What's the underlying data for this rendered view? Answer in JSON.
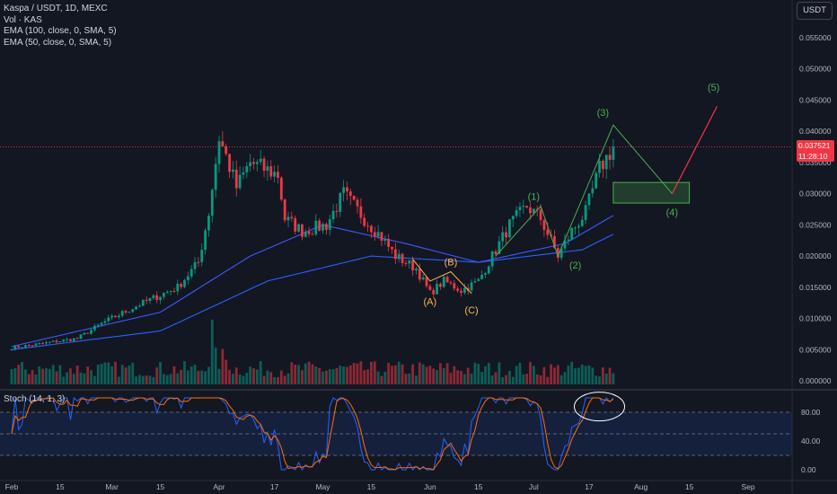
{
  "header": {
    "symbol": "Kaspa / USDT, 1D, MEXC",
    "volume": "Vol · KAS",
    "ema100": "EMA (100, close, 0, SMA, 5)",
    "ema50": "EMA (50, close, 0, SMA, 5)",
    "currency_button": "USDT"
  },
  "stoch_label": "Stoch (14, 1, 3)",
  "price_tag": {
    "price": "0.037521",
    "countdown": "11:28:10"
  },
  "colors": {
    "background": "#131722",
    "up": "#089981",
    "down": "#f23645",
    "ema100": "#2962ff",
    "ema50": "#3d5afe",
    "stoch_k": "#2962ff",
    "stoch_d": "#ff6d00",
    "wave_green": "#4caf50",
    "wave_orange": "#ffb74d",
    "projection_red": "#f23645"
  },
  "chart_data": {
    "type": "candlestick",
    "price_axis": {
      "ticks": [
        "0.055000",
        "0.050000",
        "0.045000",
        "0.040000",
        "0.035000",
        "0.030000",
        "0.025000",
        "0.020000",
        "0.015000",
        "0.010000",
        "0.005000",
        "0.000000"
      ],
      "ylim": [
        0,
        0.058
      ]
    },
    "time_axis": {
      "ticks": [
        "Feb",
        "15",
        "Mar",
        "15",
        "Apr",
        "17",
        "May",
        "15",
        "Jun",
        "15",
        "Jul",
        "17",
        "Aug",
        "15",
        "Sep"
      ]
    },
    "close_anchors": [
      [
        "Feb 1",
        0.0053
      ],
      [
        "Feb 10",
        0.006
      ],
      [
        "Feb 20",
        0.0068
      ],
      [
        "Feb 28",
        0.0095
      ],
      [
        "Mar 10",
        0.0125
      ],
      [
        "Mar 20",
        0.015
      ],
      [
        "Mar 26",
        0.019
      ],
      [
        "Mar 29",
        0.027
      ],
      [
        "Apr 1",
        0.039
      ],
      [
        "Apr 3",
        0.036
      ],
      [
        "Apr 6",
        0.031
      ],
      [
        "Apr 10",
        0.035
      ],
      [
        "Apr 14",
        0.034
      ],
      [
        "Apr 18",
        0.033
      ],
      [
        "Apr 20",
        0.026
      ],
      [
        "Apr 25",
        0.024
      ],
      [
        "May 2",
        0.025
      ],
      [
        "May 7",
        0.03
      ],
      [
        "May 13",
        0.026
      ],
      [
        "May 18",
        0.023
      ],
      [
        "May 22",
        0.02
      ],
      [
        "May 28",
        0.018
      ],
      [
        "Jun 1",
        0.014
      ],
      [
        "Jun 5",
        0.016
      ],
      [
        "Jun 10",
        0.0145
      ],
      [
        "Jun 15",
        0.016
      ],
      [
        "Jun 20",
        0.021
      ],
      [
        "Jun 24",
        0.025
      ],
      [
        "Jun 29",
        0.028
      ],
      [
        "Jul 3",
        0.026
      ],
      [
        "Jul 8",
        0.02
      ],
      [
        "Jul 12",
        0.024
      ],
      [
        "Jul 16",
        0.027
      ],
      [
        "Jul 20",
        0.034
      ],
      [
        "Jul 24",
        0.0375
      ]
    ],
    "ema100_anchors": [
      [
        "Feb 1",
        0.005
      ],
      [
        "Mar 15",
        0.008
      ],
      [
        "Apr 15",
        0.016
      ],
      [
        "May 15",
        0.02
      ],
      [
        "Jun 15",
        0.019
      ],
      [
        "Jul 15",
        0.021
      ],
      [
        "Jul 24",
        0.0235
      ]
    ],
    "ema50_anchors": [
      [
        "Feb 1",
        0.0055
      ],
      [
        "Mar 15",
        0.011
      ],
      [
        "Apr 10",
        0.02
      ],
      [
        "May 1",
        0.025
      ],
      [
        "May 25",
        0.022
      ],
      [
        "Jun 15",
        0.019
      ],
      [
        "Jul 10",
        0.022
      ],
      [
        "Jul 24",
        0.0265
      ]
    ],
    "stoch_axis": {
      "ticks": [
        "80.00",
        "40.00",
        "0.00"
      ],
      "ylim": [
        0,
        100
      ],
      "bands": [
        20,
        50,
        80
      ]
    },
    "annotations": {
      "labels": [
        {
          "text": "(A)",
          "date": "Jun 1",
          "price": 0.0122,
          "color": "orange"
        },
        {
          "text": "(B)",
          "date": "Jun 7",
          "price": 0.0185,
          "color": "orange"
        },
        {
          "text": "(C)",
          "date": "Jun 13",
          "price": 0.0108,
          "color": "orange"
        },
        {
          "text": "(1)",
          "date": "Jul 1",
          "price": 0.029,
          "color": "green"
        },
        {
          "text": "(2)",
          "date": "Jul 13",
          "price": 0.018,
          "color": "green"
        },
        {
          "text": "(3)",
          "date": "Jul 21",
          "price": 0.0425,
          "color": "green"
        },
        {
          "text": "(4)",
          "date": "Aug 10",
          "price": 0.0265,
          "color": "green"
        },
        {
          "text": "(5)",
          "date": "Aug 22",
          "price": 0.0465,
          "color": "green"
        }
      ],
      "abc_path": [
        [
          "May 27",
          0.0195
        ],
        [
          "Jun 1",
          0.016
        ],
        [
          "Jun 7",
          0.0175
        ],
        [
          "Jun 13",
          0.014
        ]
      ],
      "impulse_path": [
        [
          "Jun 20",
          0.02
        ],
        [
          "Jul 3",
          0.028
        ],
        [
          "Jul 8",
          0.02
        ],
        [
          "Jul 24",
          0.041
        ],
        [
          "Aug 10",
          0.03
        ]
      ],
      "projection_path": [
        [
          "Aug 10",
          0.03
        ],
        [
          "Aug 23",
          0.044
        ]
      ],
      "target_box": {
        "from": "Jul 24",
        "to": "Aug 15",
        "top": 0.0318,
        "bottom": 0.0285
      }
    }
  }
}
